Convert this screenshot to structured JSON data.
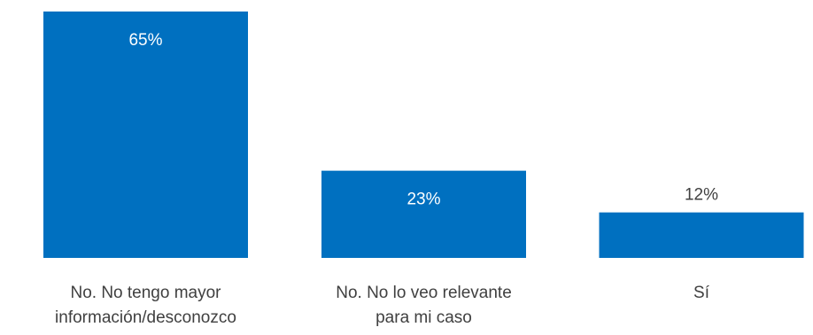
{
  "chart_data": {
    "type": "bar",
    "title": "",
    "xlabel": "",
    "ylabel": "",
    "categories": [
      [
        "No. No tengo mayor",
        "información/desconozco"
      ],
      [
        "No. No lo veo relevante",
        "para mi caso"
      ],
      [
        "Sí"
      ]
    ],
    "values": [
      65,
      23,
      12
    ],
    "value_labels": [
      "65%",
      "23%",
      "12%"
    ],
    "ylim": [
      0,
      65
    ],
    "grid": false,
    "legend": "none",
    "bar_color": "#0070C0",
    "label_color": "#404040"
  }
}
